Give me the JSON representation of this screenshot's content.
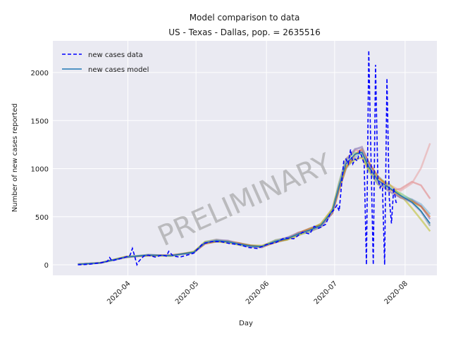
{
  "chart_data": {
    "type": "line",
    "title": "Model comparison to data",
    "subtitle": "US - Texas - Dallas, pop. = 2635516",
    "xlabel": "Day",
    "ylabel": "Number of new cases reported",
    "watermark": "PRELIMINARY",
    "x_ticks": [
      "2020-04",
      "2020-05",
      "2020-06",
      "2020-07",
      "2020-08"
    ],
    "x_range": [
      "2020-02-28",
      "2020-08-15"
    ],
    "y_ticks": [
      0,
      500,
      1000,
      1500,
      2000
    ],
    "ylim": [
      -110,
      2330
    ],
    "grid": true,
    "legend": {
      "position": "top-left",
      "entries": [
        {
          "label": "new cases data",
          "style": "dashed",
          "color": "#0000ff"
        },
        {
          "label": "new cases model",
          "style": "solid",
          "color": "#1f77b4"
        }
      ]
    },
    "series": [
      {
        "name": "new cases data",
        "color": "#0000ff",
        "points": [
          [
            "2020-03-10",
            0
          ],
          [
            "2020-03-15",
            5
          ],
          [
            "2020-03-20",
            20
          ],
          [
            "2020-03-23",
            35
          ],
          [
            "2020-03-24",
            75
          ],
          [
            "2020-03-25",
            40
          ],
          [
            "2020-03-28",
            60
          ],
          [
            "2020-03-31",
            80
          ],
          [
            "2020-04-02",
            100
          ],
          [
            "2020-04-03",
            170
          ],
          [
            "2020-04-04",
            90
          ],
          [
            "2020-04-05",
            0
          ],
          [
            "2020-04-06",
            40
          ],
          [
            "2020-04-08",
            90
          ],
          [
            "2020-04-10",
            100
          ],
          [
            "2020-04-13",
            80
          ],
          [
            "2020-04-16",
            100
          ],
          [
            "2020-04-18",
            90
          ],
          [
            "2020-04-19",
            140
          ],
          [
            "2020-04-21",
            90
          ],
          [
            "2020-04-24",
            80
          ],
          [
            "2020-04-27",
            100
          ],
          [
            "2020-04-30",
            120
          ],
          [
            "2020-05-04",
            220
          ],
          [
            "2020-05-08",
            240
          ],
          [
            "2020-05-12",
            240
          ],
          [
            "2020-05-16",
            220
          ],
          [
            "2020-05-20",
            210
          ],
          [
            "2020-05-24",
            180
          ],
          [
            "2020-05-28",
            170
          ],
          [
            "2020-06-01",
            210
          ],
          [
            "2020-06-05",
            230
          ],
          [
            "2020-06-09",
            280
          ],
          [
            "2020-06-13",
            270
          ],
          [
            "2020-06-17",
            340
          ],
          [
            "2020-06-20",
            320
          ],
          [
            "2020-06-22",
            400
          ],
          [
            "2020-06-24",
            380
          ],
          [
            "2020-06-27",
            420
          ],
          [
            "2020-06-29",
            530
          ],
          [
            "2020-07-01",
            580
          ],
          [
            "2020-07-02",
            620
          ],
          [
            "2020-07-03",
            560
          ],
          [
            "2020-07-05",
            1080
          ],
          [
            "2020-07-06",
            1100
          ],
          [
            "2020-07-07",
            1050
          ],
          [
            "2020-07-08",
            1200
          ],
          [
            "2020-07-09",
            1050
          ],
          [
            "2020-07-10",
            1100
          ],
          [
            "2020-07-11",
            1080
          ],
          [
            "2020-07-12",
            1180
          ],
          [
            "2020-07-13",
            1120
          ],
          [
            "2020-07-14",
            1050
          ],
          [
            "2020-07-15",
            0
          ],
          [
            "2020-07-16",
            2230
          ],
          [
            "2020-07-17",
            1100
          ],
          [
            "2020-07-18",
            0
          ],
          [
            "2020-07-19",
            2080
          ],
          [
            "2020-07-20",
            900
          ],
          [
            "2020-07-21",
            800
          ],
          [
            "2020-07-22",
            850
          ],
          [
            "2020-07-23",
            0
          ],
          [
            "2020-07-24",
            1940
          ],
          [
            "2020-07-25",
            700
          ],
          [
            "2020-07-26",
            430
          ],
          [
            "2020-07-27",
            800
          ],
          [
            "2020-07-28",
            650
          ],
          [
            "2020-07-29",
            640
          ]
        ]
      },
      {
        "name": "new cases model",
        "color": "#1f77b4",
        "points": [
          [
            "2020-03-10",
            5
          ],
          [
            "2020-03-20",
            20
          ],
          [
            "2020-03-31",
            80
          ],
          [
            "2020-04-10",
            100
          ],
          [
            "2020-04-20",
            95
          ],
          [
            "2020-04-30",
            130
          ],
          [
            "2020-05-05",
            230
          ],
          [
            "2020-05-10",
            250
          ],
          [
            "2020-05-15",
            240
          ],
          [
            "2020-05-20",
            215
          ],
          [
            "2020-05-25",
            195
          ],
          [
            "2020-05-30",
            190
          ],
          [
            "2020-06-05",
            245
          ],
          [
            "2020-06-10",
            270
          ],
          [
            "2020-06-15",
            320
          ],
          [
            "2020-06-20",
            360
          ],
          [
            "2020-06-25",
            410
          ],
          [
            "2020-06-30",
            560
          ],
          [
            "2020-07-03",
            820
          ],
          [
            "2020-07-06",
            1050
          ],
          [
            "2020-07-10",
            1150
          ],
          [
            "2020-07-13",
            1170
          ],
          [
            "2020-07-16",
            1020
          ],
          [
            "2020-07-20",
            880
          ],
          [
            "2020-07-25",
            800
          ],
          [
            "2020-07-30",
            720
          ],
          [
            "2020-08-04",
            650
          ],
          [
            "2020-08-08",
            560
          ],
          [
            "2020-08-12",
            430
          ]
        ]
      }
    ]
  }
}
